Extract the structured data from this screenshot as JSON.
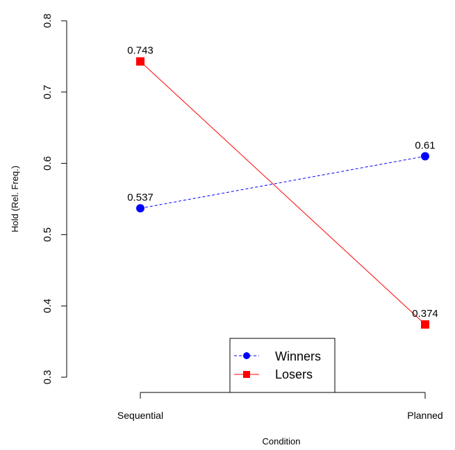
{
  "chart_data": {
    "type": "line",
    "xlabel": "Condition",
    "ylabel": "Hold (Rel. Freq.)",
    "categories": [
      "Sequential",
      "Planned"
    ],
    "ylim": [
      0.28,
      0.82
    ],
    "yticks": [
      "0.3",
      "0.4",
      "0.5",
      "0.6",
      "0.7",
      "0.8"
    ],
    "grid": false,
    "legend_position": "bottom-center",
    "series": [
      {
        "name": "Winners",
        "values": [
          0.537,
          0.61
        ],
        "labels": [
          "0.537",
          "0.61"
        ],
        "color": "#0000ff",
        "marker": "circle",
        "line_style": "dashed"
      },
      {
        "name": "Losers",
        "values": [
          0.743,
          0.374
        ],
        "labels": [
          "0.743",
          "0.374"
        ],
        "color": "#ff0000",
        "marker": "square",
        "line_style": "solid"
      }
    ]
  }
}
